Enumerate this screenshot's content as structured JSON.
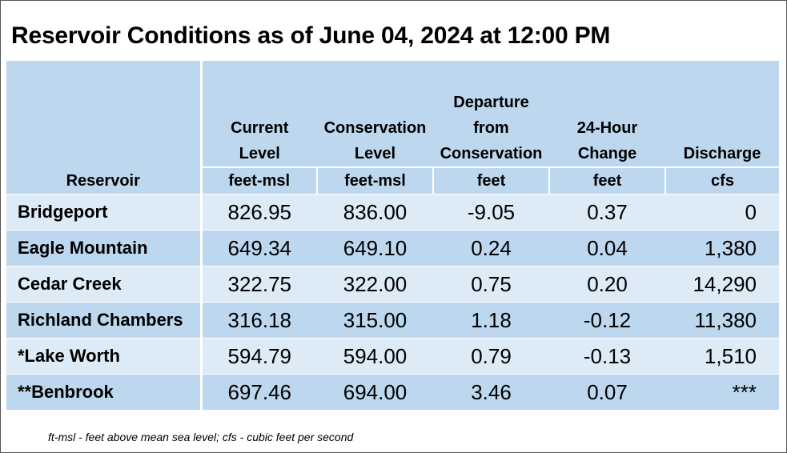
{
  "title": "Reservoir Conditions as of June 04, 2024 at 12:00 PM",
  "columns": [
    {
      "lines": [
        "Reservoir"
      ],
      "unit": ""
    },
    {
      "lines": [
        "Current",
        "Level"
      ],
      "unit": "feet-msl"
    },
    {
      "lines": [
        "Conservation",
        "Level"
      ],
      "unit": "feet-msl"
    },
    {
      "lines": [
        "Departure",
        "from",
        "Conservation"
      ],
      "unit": "feet"
    },
    {
      "lines": [
        "24-Hour",
        "Change"
      ],
      "unit": "feet"
    },
    {
      "lines": [
        "Discharge"
      ],
      "unit": "cfs"
    }
  ],
  "rows": [
    {
      "name": "Bridgeport",
      "current": "826.95",
      "conservation": "836.00",
      "departure": "-9.05",
      "change": "0.37",
      "discharge": "0"
    },
    {
      "name": "Eagle Mountain",
      "current": "649.34",
      "conservation": "649.10",
      "departure": "0.24",
      "change": "0.04",
      "discharge": "1,380"
    },
    {
      "name": "Cedar Creek",
      "current": "322.75",
      "conservation": "322.00",
      "departure": "0.75",
      "change": "0.20",
      "discharge": "14,290"
    },
    {
      "name": "Richland Chambers",
      "current": "316.18",
      "conservation": "315.00",
      "departure": "1.18",
      "change": "-0.12",
      "discharge": "11,380"
    },
    {
      "name": "*Lake Worth",
      "current": "594.79",
      "conservation": "594.00",
      "departure": "0.79",
      "change": "-0.13",
      "discharge": "1,510"
    },
    {
      "name": "**Benbrook",
      "current": "697.46",
      "conservation": "694.00",
      "departure": "3.46",
      "change": "0.07",
      "discharge": "***"
    }
  ],
  "footnote": "ft-msl - feet above mean sea level; cfs - cubic feet per second",
  "colors": {
    "header": "#bdd7ee",
    "row_light": "#ddebf7",
    "row_dark": "#bdd7ee"
  }
}
